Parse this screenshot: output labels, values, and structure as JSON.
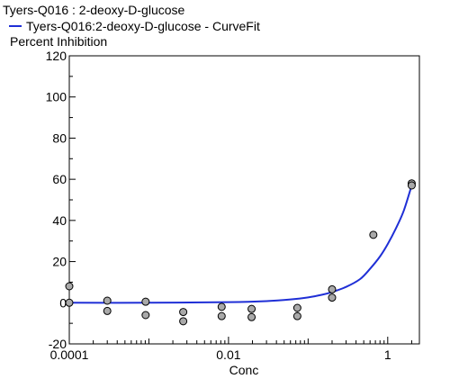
{
  "chart_data": {
    "type": "scatter",
    "title": "Tyers-Q016  : 2-deoxy-D-glucose",
    "legend": [
      {
        "name": "Tyers-Q016:2-deoxy-D-glucose - CurveFit",
        "color": "#1f2fd6",
        "marker": "line"
      }
    ],
    "legend_placement": "top-left",
    "xlabel": "Conc",
    "ylabel": "Percent Inhibition",
    "x_scale": "log",
    "xlim": [
      0.0001,
      2.5
    ],
    "ylim": [
      -20,
      120
    ],
    "x_ticks": [
      0.0001,
      0.01,
      1
    ],
    "x_tick_labels": [
      "0.0001",
      "0.01",
      "1"
    ],
    "y_ticks": [
      -20,
      0,
      20,
      40,
      60,
      80,
      100,
      120
    ],
    "y_tick_labels": [
      "-20",
      "0",
      "20",
      "40",
      "60",
      "80",
      "100",
      "120"
    ],
    "grid": false,
    "points": [
      {
        "x": 0.0001,
        "y": 8
      },
      {
        "x": 0.0001,
        "y": 0
      },
      {
        "x": 0.0003,
        "y": 1
      },
      {
        "x": 0.0003,
        "y": -4
      },
      {
        "x": 0.00091,
        "y": 0.5
      },
      {
        "x": 0.00091,
        "y": -6
      },
      {
        "x": 0.0027,
        "y": -4.5
      },
      {
        "x": 0.0027,
        "y": -9
      },
      {
        "x": 0.0082,
        "y": -2
      },
      {
        "x": 0.0082,
        "y": -6.5
      },
      {
        "x": 0.0195,
        "y": -3
      },
      {
        "x": 0.0195,
        "y": -7
      },
      {
        "x": 0.0732,
        "y": -2.5
      },
      {
        "x": 0.0732,
        "y": -6.5
      },
      {
        "x": 0.2,
        "y": 6.5
      },
      {
        "x": 0.2,
        "y": 2.5
      },
      {
        "x": 0.66,
        "y": 33
      },
      {
        "x": 2.0,
        "y": 58
      },
      {
        "x": 2.0,
        "y": 57
      }
    ],
    "curve": {
      "name": "Tyers-Q016:2-deoxy-D-glucose - CurveFit",
      "color": "#1f2fd6",
      "x": [
        0.0001,
        0.001,
        0.01,
        0.03,
        0.06,
        0.1,
        0.15,
        0.2,
        0.3,
        0.45,
        0.6,
        0.8,
        1.0,
        1.3,
        1.6,
        2.0
      ],
      "y": [
        0,
        0,
        0.3,
        0.8,
        1.6,
        2.6,
        3.9,
        5.2,
        7.7,
        11.5,
        16.5,
        22.5,
        28.5,
        37,
        45,
        57
      ]
    },
    "point_style": {
      "fill": "#a9a9a9",
      "stroke": "#000000"
    }
  }
}
